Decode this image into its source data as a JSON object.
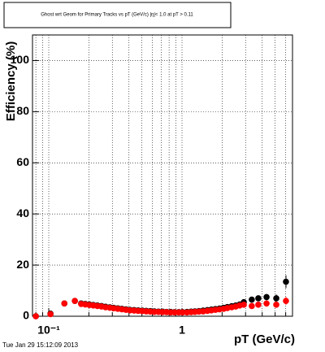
{
  "chart_data": {
    "type": "scatter",
    "title": "Ghost wrt Geom for Primary Tracks vs pT (GeV/c) |η|< 1.0 at pT > 0.11",
    "x_label": "pT (GeV/c)",
    "y_label": "Efficiency (%)",
    "timestamp": "Tue Jan 29 15:12:09 2013",
    "x_log": true,
    "grid": true,
    "xlim": [
      0.0755,
      6.75
    ],
    "ylim": [
      0,
      110
    ],
    "xticks": [
      {
        "value": 0.1,
        "label": "10⁻¹"
      },
      1
    ],
    "xminor_ticks": [
      0.08,
      0.09,
      0.2,
      0.3,
      0.4,
      0.5,
      0.6,
      0.7,
      0.8,
      0.9,
      2,
      3,
      4,
      5,
      6
    ],
    "yticks": [
      0,
      20,
      40,
      60,
      80,
      100
    ],
    "x": [
      0.08,
      0.103,
      0.131,
      0.157,
      0.175,
      0.188,
      0.202,
      0.216,
      0.232,
      0.249,
      0.267,
      0.287,
      0.307,
      0.33,
      0.354,
      0.38,
      0.407,
      0.437,
      0.469,
      0.503,
      0.539,
      0.578,
      0.62,
      0.666,
      0.714,
      0.766,
      0.822,
      0.881,
      0.946,
      1.01,
      1.09,
      1.17,
      1.25,
      1.34,
      1.44,
      1.55,
      1.66,
      1.78,
      1.91,
      2.05,
      2.19,
      2.36,
      2.53,
      2.71,
      2.91,
      3.34,
      3.74,
      4.31,
      5.1,
      6.03
    ],
    "series": [
      {
        "name": "black",
        "color": "#000000",
        "values": [
          0,
          1,
          5,
          6,
          5.0,
          4.8,
          4.6,
          4.4,
          4.2,
          4.0,
          3.7,
          3.5,
          3.3,
          3.1,
          2.9,
          2.7,
          2.5,
          2.4,
          2.3,
          2.2,
          2.1,
          2.0,
          1.9,
          1.8,
          1.8,
          1.7,
          1.7,
          1.6,
          1.6,
          1.6,
          1.7,
          1.8,
          1.9,
          2.0,
          2.2,
          2.4,
          2.6,
          2.8,
          3.0,
          3.3,
          3.6,
          3.9,
          4.2,
          4.6,
          5.5,
          6.5,
          7,
          7.5,
          7,
          13.5
        ],
        "errors": [
          0.5,
          0.8,
          0.6,
          0.5,
          0.3,
          0.3,
          0.3,
          0.3,
          0.3,
          0.3,
          0.3,
          0.3,
          0.3,
          0.3,
          0.3,
          0.3,
          0.3,
          0.3,
          0.3,
          0.3,
          0.3,
          0.3,
          0.3,
          0.3,
          0.3,
          0.3,
          0.3,
          0.3,
          0.3,
          0.3,
          0.3,
          0.3,
          0.3,
          0.3,
          0.3,
          0.3,
          0.3,
          0.3,
          0.4,
          0.4,
          0.4,
          0.5,
          0.5,
          0.6,
          0.8,
          0.9,
          1.0,
          1.2,
          1.5,
          2.5
        ]
      },
      {
        "name": "red",
        "color": "#ff0000",
        "values": [
          0,
          0.8,
          5,
          6,
          4.8,
          4.6,
          4.4,
          4.2,
          4.0,
          3.8,
          3.5,
          3.3,
          3.1,
          2.9,
          2.7,
          2.5,
          2.3,
          2.2,
          2.1,
          2.0,
          1.9,
          1.8,
          1.7,
          1.7,
          1.6,
          1.6,
          1.5,
          1.5,
          1.5,
          1.5,
          1.5,
          1.6,
          1.7,
          1.8,
          1.9,
          2.1,
          2.3,
          2.5,
          2.7,
          2.9,
          3.2,
          3.5,
          3.8,
          4.2,
          4.5,
          4.0,
          4.5,
          5,
          4.5,
          6
        ],
        "errors": [
          0.5,
          0.7,
          0.6,
          0.5,
          0.3,
          0.3,
          0.3,
          0.3,
          0.3,
          0.3,
          0.3,
          0.3,
          0.3,
          0.3,
          0.3,
          0.3,
          0.3,
          0.3,
          0.3,
          0.3,
          0.3,
          0.3,
          0.3,
          0.3,
          0.3,
          0.3,
          0.3,
          0.3,
          0.3,
          0.3,
          0.3,
          0.3,
          0.3,
          0.3,
          0.3,
          0.3,
          0.3,
          0.3,
          0.4,
          0.4,
          0.4,
          0.5,
          0.5,
          0.6,
          0.7,
          0.8,
          0.9,
          1.0,
          1.2,
          1.5
        ]
      }
    ]
  }
}
